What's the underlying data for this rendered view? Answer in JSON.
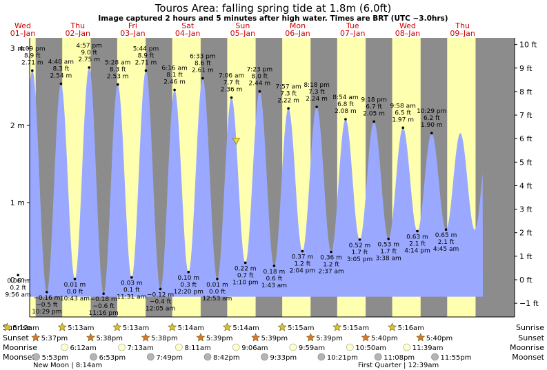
{
  "title": "Touros Area: falling  spring tide at 1.8m (6.0ft)",
  "subtitle": "Image captured 2 hours and 5 minutes after high water. Times are BRT (UTC −3.0hrs)",
  "colors": {
    "night": "#8c8c8c",
    "day": "#ffffb0",
    "tide_fill": "#9aa9ff",
    "day_header": "#cc0000",
    "sun_marker": "#d8c43a",
    "sunset_marker": "#d9772e",
    "moonrise_marker": "#ffffc8",
    "moonset_marker": "#b4b4b4",
    "now_marker": "#e8d84a"
  },
  "chart_data": {
    "type": "area",
    "title": "Touros Area: falling  spring tide at 1.8m (6.0ft)",
    "ylabel_left": "m",
    "ylabel_right": "ft",
    "ylim_m": [
      -0.45,
      3.15
    ],
    "left_ticks": [
      {
        "v": 0,
        "label": "0 m"
      },
      {
        "v": 1,
        "label": "1 m"
      },
      {
        "v": 2,
        "label": "2 m"
      },
      {
        "v": 3,
        "label": "3 m"
      }
    ],
    "right_ticks": [
      {
        "v": -1,
        "label": "−1 ft"
      },
      {
        "v": 0,
        "label": "0 ft"
      },
      {
        "v": 1,
        "label": "1 ft"
      },
      {
        "v": 2,
        "label": "2 ft"
      },
      {
        "v": 3,
        "label": "3 ft"
      },
      {
        "v": 4,
        "label": "4 ft"
      },
      {
        "v": 5,
        "label": "5 ft"
      },
      {
        "v": 6,
        "label": "6 ft"
      },
      {
        "v": 7,
        "label": "7 ft"
      },
      {
        "v": 8,
        "label": "8 ft"
      },
      {
        "v": 9,
        "label": "9 ft"
      },
      {
        "v": 10,
        "label": "10 ft"
      }
    ],
    "days": [
      {
        "dow": "Wed",
        "date": "01–Jan"
      },
      {
        "dow": "Thu",
        "date": "02–Jan"
      },
      {
        "dow": "Fri",
        "date": "03–Jan"
      },
      {
        "dow": "Sat",
        "date": "04–Jan"
      },
      {
        "dow": "Sun",
        "date": "05–Jan"
      },
      {
        "dow": "Mon",
        "date": "06–Jan"
      },
      {
        "dow": "Tue",
        "date": "07–Jan"
      },
      {
        "dow": "Wed",
        "date": "08–Jan"
      },
      {
        "dow": "Thu",
        "date": "09–Jan"
      }
    ],
    "tides": [
      {
        "type": "low",
        "day": 1,
        "time": "9:56 am",
        "m": "0.06 m",
        "ft": "0.2 ft",
        "h": 0.06
      },
      {
        "type": "high",
        "day": 1,
        "time": "4:09 pm",
        "m": "2.71 m",
        "ft": "8.9 ft",
        "h": 2.71
      },
      {
        "type": "low",
        "day": 1,
        "time": "10:29 pm",
        "m": "−0.16 m",
        "ft": "−0.5 ft",
        "h": -0.16
      },
      {
        "type": "high",
        "day": 2,
        "time": "4:40 am",
        "m": "2.54 m",
        "ft": "8.3 ft",
        "h": 2.54
      },
      {
        "type": "low",
        "day": 2,
        "time": "10:43 am",
        "m": "0.01 m",
        "ft": "0.0 ft",
        "h": 0.01
      },
      {
        "type": "high",
        "day": 2,
        "time": "4:57 pm",
        "m": "2.75 m",
        "ft": "9.0 ft",
        "h": 2.75
      },
      {
        "type": "low",
        "day": 2,
        "time": "11:16 pm",
        "m": "−0.18 m",
        "ft": "−0.6 ft",
        "h": -0.18
      },
      {
        "type": "high",
        "day": 3,
        "time": "5:28 am",
        "m": "2.53 m",
        "ft": "8.3 ft",
        "h": 2.53
      },
      {
        "type": "low",
        "day": 3,
        "time": "11:31 am",
        "m": "0.03 m",
        "ft": "0.1 ft",
        "h": 0.03
      },
      {
        "type": "high",
        "day": 3,
        "time": "5:44 pm",
        "m": "2.71 m",
        "ft": "8.9 ft",
        "h": 2.71
      },
      {
        "type": "low",
        "day": 4,
        "time": "12:05 am",
        "m": "−0.12 m",
        "ft": "−0.4 ft",
        "h": -0.12
      },
      {
        "type": "high",
        "day": 4,
        "time": "6:16 am",
        "m": "2.46 m",
        "ft": "8.1 ft",
        "h": 2.46
      },
      {
        "type": "low",
        "day": 4,
        "time": "12:20 pm",
        "m": "0.10 m",
        "ft": "0.3 ft",
        "h": 0.1
      },
      {
        "type": "high",
        "day": 4,
        "time": "6:33 pm",
        "m": "2.61 m",
        "ft": "8.6 ft",
        "h": 2.61
      },
      {
        "type": "low",
        "day": 5,
        "time": "12:53 am",
        "m": "0.01 m",
        "ft": "0.0 ft",
        "h": 0.01
      },
      {
        "type": "high",
        "day": 5,
        "time": "7:06 am",
        "m": "2.36 m",
        "ft": "7.7 ft",
        "h": 2.36
      },
      {
        "type": "low",
        "day": 5,
        "time": "1:10 pm",
        "m": "0.22 m",
        "ft": "0.7 ft",
        "h": 0.22
      },
      {
        "type": "high",
        "day": 5,
        "time": "7:23 pm",
        "m": "2.44 m",
        "ft": "8.0 ft",
        "h": 2.44
      },
      {
        "type": "low",
        "day": 6,
        "time": "1:43 am",
        "m": "0.18 m",
        "ft": "0.6 ft",
        "h": 0.18
      },
      {
        "type": "high",
        "day": 6,
        "time": "7:57 am",
        "m": "2.22 m",
        "ft": "7.3 ft",
        "h": 2.22
      },
      {
        "type": "low",
        "day": 6,
        "time": "2:04 pm",
        "m": "0.37 m",
        "ft": "1.2 ft",
        "h": 0.37
      },
      {
        "type": "high",
        "day": 6,
        "time": "8:18 pm",
        "m": "2.24 m",
        "ft": "7.3 ft",
        "h": 2.24
      },
      {
        "type": "low",
        "day": 7,
        "time": "2:37 am",
        "m": "0.36 m",
        "ft": "1.2 ft",
        "h": 0.36
      },
      {
        "type": "high",
        "day": 7,
        "time": "8:54 am",
        "m": "2.08 m",
        "ft": "6.8 ft",
        "h": 2.08
      },
      {
        "type": "low",
        "day": 7,
        "time": "3:05 pm",
        "m": "0.52 m",
        "ft": "1.7 ft",
        "h": 0.52
      },
      {
        "type": "high",
        "day": 7,
        "time": "9:18 pm",
        "m": "2.05 m",
        "ft": "6.7 ft",
        "h": 2.05
      },
      {
        "type": "low",
        "day": 8,
        "time": "3:38 am",
        "m": "0.53 m",
        "ft": "1.7 ft",
        "h": 0.53
      },
      {
        "type": "high",
        "day": 8,
        "time": "9:58 am",
        "m": "1.97 m",
        "ft": "6.5 ft",
        "h": 1.97
      },
      {
        "type": "low",
        "day": 8,
        "time": "4:14 pm",
        "m": "0.63 m",
        "ft": "2.1 ft",
        "h": 0.63
      },
      {
        "type": "high",
        "day": 8,
        "time": "10:29 pm",
        "m": "1.90 m",
        "ft": "6.2 ft",
        "h": 1.9
      },
      {
        "type": "low",
        "day": 9,
        "time": "4:45 am",
        "m": "0.65 m",
        "ft": "2.1 ft",
        "h": 0.65
      }
    ],
    "current": {
      "day": 5,
      "time": "9:11 am",
      "h": 1.8
    },
    "sunrise": [
      "5:12am",
      "5:13am",
      "5:13am",
      "5:14am",
      "5:14am",
      "5:15am",
      "5:15am",
      "5:16am"
    ],
    "sunset": [
      "5:37pm",
      "5:38pm",
      "5:38pm",
      "5:39pm",
      "5:39pm",
      "5:39pm",
      "5:40pm",
      "5:40pm"
    ],
    "moonrise": [
      "6:12am",
      "7:13am",
      "8:11am",
      "9:06am",
      "9:59am",
      "10:50am",
      "11:39am"
    ],
    "moonrise_days": [
      1,
      2,
      3,
      4,
      5,
      6,
      7
    ],
    "moonset": [
      "5:53pm",
      "6:53pm",
      "7:49pm",
      "8:42pm",
      "9:33pm",
      "10:21pm",
      "11:08pm",
      "11:55pm"
    ],
    "row_labels": {
      "sunrise": "Sunrise",
      "sunset": "Sunset",
      "moonrise": "Moonrise",
      "moonset": "Moonset"
    },
    "phases": [
      {
        "label": "New Moon | 8:14am"
      },
      {
        "label": "First Quarter | 12:39am"
      }
    ]
  }
}
